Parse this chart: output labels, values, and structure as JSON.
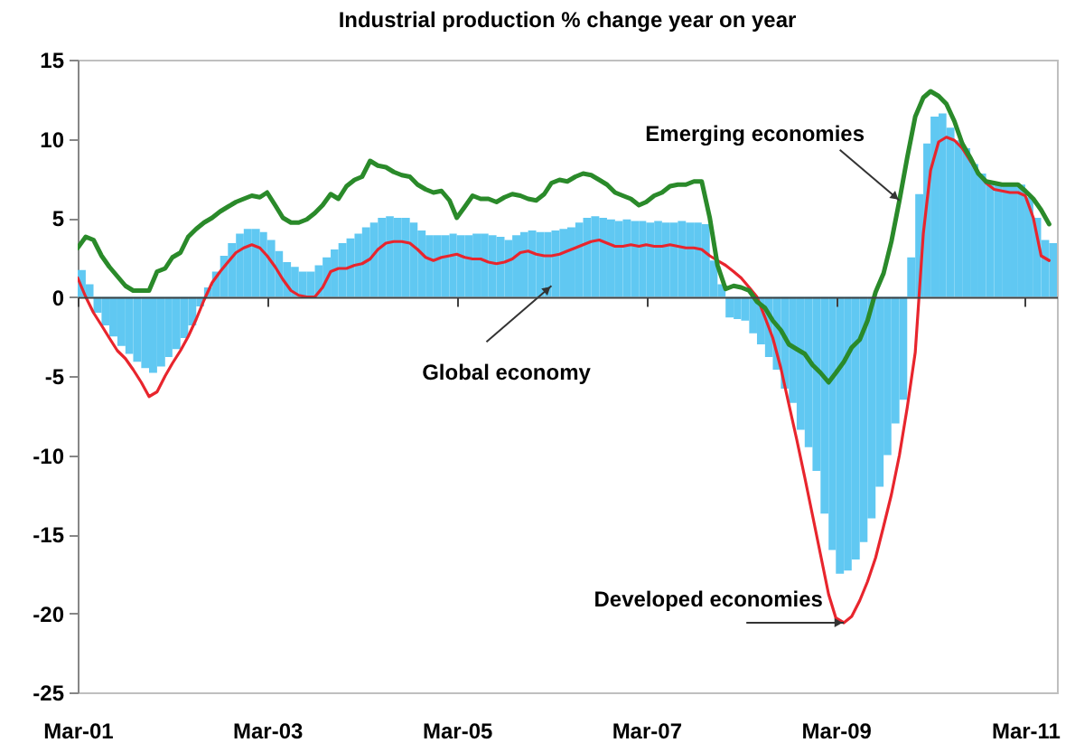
{
  "chart_data": {
    "type": "bar",
    "title": "Industrial production % change year on year",
    "x": [
      "2001-03",
      "2001-04",
      "2001-05",
      "2001-06",
      "2001-07",
      "2001-08",
      "2001-09",
      "2001-10",
      "2001-11",
      "2001-12",
      "2002-01",
      "2002-02",
      "2002-03",
      "2002-04",
      "2002-05",
      "2002-06",
      "2002-07",
      "2002-08",
      "2002-09",
      "2002-10",
      "2002-11",
      "2002-12",
      "2003-01",
      "2003-02",
      "2003-03",
      "2003-04",
      "2003-05",
      "2003-06",
      "2003-07",
      "2003-08",
      "2003-09",
      "2003-10",
      "2003-11",
      "2003-12",
      "2004-01",
      "2004-02",
      "2004-03",
      "2004-04",
      "2004-05",
      "2004-06",
      "2004-07",
      "2004-08",
      "2004-09",
      "2004-10",
      "2004-11",
      "2004-12",
      "2005-01",
      "2005-02",
      "2005-03",
      "2005-04",
      "2005-05",
      "2005-06",
      "2005-07",
      "2005-08",
      "2005-09",
      "2005-10",
      "2005-11",
      "2005-12",
      "2006-01",
      "2006-02",
      "2006-03",
      "2006-04",
      "2006-05",
      "2006-06",
      "2006-07",
      "2006-08",
      "2006-09",
      "2006-10",
      "2006-11",
      "2006-12",
      "2007-01",
      "2007-02",
      "2007-03",
      "2007-04",
      "2007-05",
      "2007-06",
      "2007-07",
      "2007-08",
      "2007-09",
      "2007-10",
      "2007-11",
      "2007-12",
      "2008-01",
      "2008-02",
      "2008-03",
      "2008-04",
      "2008-05",
      "2008-06",
      "2008-07",
      "2008-08",
      "2008-09",
      "2008-10",
      "2008-11",
      "2008-12",
      "2009-01",
      "2009-02",
      "2009-03",
      "2009-04",
      "2009-05",
      "2009-06",
      "2009-07",
      "2009-08",
      "2009-09",
      "2009-10",
      "2009-11",
      "2009-12",
      "2010-01",
      "2010-02",
      "2010-03",
      "2010-04",
      "2010-05",
      "2010-06",
      "2010-07",
      "2010-08",
      "2010-09",
      "2010-10",
      "2010-11",
      "2010-12",
      "2011-01",
      "2011-02",
      "2011-03",
      "2011-04",
      "2011-05",
      "2011-06"
    ],
    "xlim": [
      "2001-03",
      "2011-07"
    ],
    "xticks": [
      {
        "value": "2001-03",
        "label": "Mar-01"
      },
      {
        "value": "2003-03",
        "label": "Mar-03"
      },
      {
        "value": "2005-03",
        "label": "Mar-05"
      },
      {
        "value": "2007-03",
        "label": "Mar-07"
      },
      {
        "value": "2009-03",
        "label": "Mar-09"
      },
      {
        "value": "2011-03",
        "label": "Mar-11"
      }
    ],
    "ylim": [
      -25,
      15
    ],
    "yticks": [
      -25,
      -20,
      -15,
      -10,
      -5,
      0,
      5,
      10,
      15
    ],
    "series": [
      {
        "color": "#60c8f2",
        "values": [
          1.7,
          0.8,
          -1.0,
          -1.8,
          -2.5,
          -3.1,
          -3.6,
          -4.1,
          -4.5,
          -4.8,
          -4.4,
          -3.8,
          -3.3,
          -2.6,
          -1.8,
          -0.6,
          0.6,
          1.6,
          2.6,
          3.4,
          4.0,
          4.3,
          4.3,
          4.1,
          3.6,
          2.9,
          2.2,
          1.9,
          1.6,
          1.6,
          2.0,
          2.5,
          3.0,
          3.4,
          3.7,
          4.0,
          4.4,
          4.7,
          5.0,
          5.1,
          5.0,
          5.0,
          4.7,
          4.2,
          3.9,
          3.9,
          3.9,
          4.0,
          3.9,
          3.9,
          4.0,
          4.0,
          3.9,
          3.8,
          3.6,
          3.9,
          4.1,
          4.2,
          4.1,
          4.1,
          4.2,
          4.3,
          4.4,
          4.7,
          5.0,
          5.1,
          5.0,
          4.9,
          4.8,
          4.9,
          4.8,
          4.8,
          4.7,
          4.8,
          4.7,
          4.7,
          4.8,
          4.7,
          4.7,
          4.6,
          2.3,
          0.8,
          -1.3,
          -1.4,
          -1.5,
          -2.3,
          -3.0,
          -3.8,
          -4.6,
          -5.8,
          -6.7,
          -8.4,
          -9.5,
          -11.0,
          -13.7,
          -16.0,
          -17.5,
          -17.3,
          -16.6,
          -15.5,
          -14.0,
          -12.0,
          -10.0,
          -8.0,
          -6.5,
          2.5,
          6.5,
          9.7,
          11.4,
          11.6,
          10.7,
          9.9,
          9.4,
          8.4,
          7.8,
          7.3,
          7.2,
          7.2,
          7.1,
          7.1,
          6.3,
          5.0,
          3.6,
          3.4
        ]
      },
      {
        "type": "line",
        "color": "#e8252d",
        "values": [
          1.2,
          0.0,
          -1.0,
          -1.8,
          -2.6,
          -3.4,
          -3.9,
          -4.6,
          -5.4,
          -6.3,
          -6.0,
          -5.0,
          -4.2,
          -3.4,
          -2.5,
          -1.4,
          -0.2,
          0.9,
          1.6,
          2.2,
          2.8,
          3.1,
          3.3,
          3.1,
          2.6,
          1.9,
          1.1,
          0.4,
          0.1,
          0.0,
          0.0,
          0.6,
          1.6,
          1.8,
          1.8,
          2.0,
          2.1,
          2.4,
          3.0,
          3.4,
          3.5,
          3.5,
          3.4,
          3.0,
          2.5,
          2.3,
          2.5,
          2.6,
          2.7,
          2.5,
          2.4,
          2.4,
          2.2,
          2.1,
          2.2,
          2.4,
          2.8,
          2.9,
          2.7,
          2.6,
          2.6,
          2.7,
          2.9,
          3.1,
          3.3,
          3.5,
          3.6,
          3.4,
          3.2,
          3.2,
          3.3,
          3.2,
          3.3,
          3.2,
          3.2,
          3.3,
          3.2,
          3.1,
          3.1,
          3.0,
          2.6,
          2.3,
          2.0,
          1.6,
          1.2,
          0.6,
          0.0,
          -1.3,
          -2.6,
          -4.5,
          -6.8,
          -9.0,
          -11.4,
          -13.8,
          -16.3,
          -18.8,
          -20.3,
          -20.6,
          -20.2,
          -19.2,
          -18.0,
          -16.5,
          -14.5,
          -12.5,
          -10.0,
          -7.0,
          -3.5,
          4.0,
          8.0,
          9.8,
          10.1,
          9.9,
          9.4,
          8.6,
          7.8,
          7.2,
          6.8,
          6.7,
          6.6,
          6.6,
          6.4,
          5.0,
          2.6,
          2.3
        ]
      },
      {
        "type": "line",
        "color": "#2a8a2a",
        "values": [
          3.1,
          3.8,
          3.6,
          2.6,
          1.9,
          1.3,
          0.7,
          0.4,
          0.4,
          0.4,
          1.6,
          1.8,
          2.5,
          2.8,
          3.8,
          4.3,
          4.7,
          5.0,
          5.4,
          5.7,
          6.0,
          6.2,
          6.4,
          6.3,
          6.6,
          5.8,
          5.0,
          4.7,
          4.7,
          4.9,
          5.3,
          5.8,
          6.5,
          6.2,
          7.0,
          7.4,
          7.6,
          8.6,
          8.3,
          8.2,
          7.9,
          7.7,
          7.6,
          7.1,
          6.8,
          6.6,
          6.7,
          6.1,
          5.0,
          5.7,
          6.4,
          6.2,
          6.2,
          6.0,
          6.3,
          6.5,
          6.4,
          6.2,
          6.1,
          6.5,
          7.2,
          7.4,
          7.3,
          7.6,
          7.8,
          7.7,
          7.4,
          7.1,
          6.6,
          6.4,
          6.2,
          5.8,
          6.0,
          6.4,
          6.6,
          7.0,
          7.1,
          7.1,
          7.3,
          7.3,
          5.0,
          2.0,
          0.5,
          0.7,
          0.6,
          0.4,
          -0.3,
          -0.7,
          -1.5,
          -2.1,
          -3.0,
          -3.3,
          -3.6,
          -4.3,
          -4.8,
          -5.4,
          -4.8,
          -4.1,
          -3.2,
          -2.7,
          -1.5,
          0.3,
          1.5,
          3.5,
          6.1,
          8.8,
          11.4,
          12.6,
          13.0,
          12.7,
          12.2,
          11.1,
          9.7,
          8.8,
          7.8,
          7.3,
          7.2,
          7.1,
          7.1,
          7.1,
          6.7,
          6.2,
          5.5,
          4.6
        ]
      }
    ],
    "annotations": [
      {
        "text": "Emerging economies",
        "x": "2009-11",
        "y": 6.1
      },
      {
        "text": "Global economy",
        "x": "2006-03",
        "y": 0.7
      },
      {
        "text": "Developed economies",
        "x": "2009-04",
        "y": -20.6
      }
    ]
  }
}
